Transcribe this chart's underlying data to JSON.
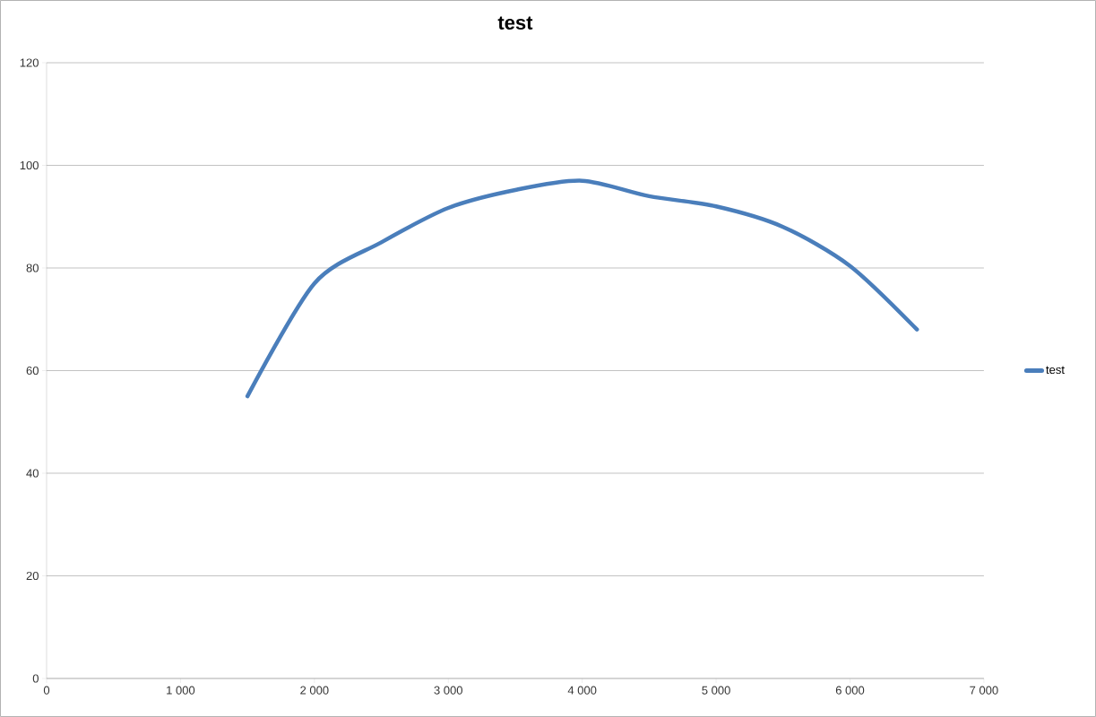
{
  "chart_data": {
    "type": "line",
    "title": "test",
    "x": [
      1500,
      2000,
      2500,
      3000,
      3500,
      4000,
      4500,
      5000,
      5500,
      6000,
      6500
    ],
    "series": [
      {
        "name": "test",
        "color": "#4a7ebb",
        "values": [
          55,
          77,
          85,
          91.7,
          95.2,
          97,
          94,
          92,
          88,
          80.4,
          68
        ]
      }
    ],
    "xlim": [
      0,
      7000
    ],
    "ylim": [
      0,
      120
    ],
    "xticks": [
      0,
      {
        "value": 1000,
        "label": "1 000"
      },
      {
        "value": 2000,
        "label": "2 000"
      },
      {
        "value": 3000,
        "label": "3 000"
      },
      {
        "value": 4000,
        "label": "4 000"
      },
      {
        "value": 5000,
        "label": "5 000"
      },
      {
        "value": 6000,
        "label": "6 000"
      },
      {
        "value": 7000,
        "label": "7 000"
      }
    ],
    "yticks": [
      0,
      20,
      40,
      60,
      80,
      100,
      120
    ],
    "grid": "y",
    "legend": "right",
    "marker": "none",
    "line_style": "solid"
  }
}
